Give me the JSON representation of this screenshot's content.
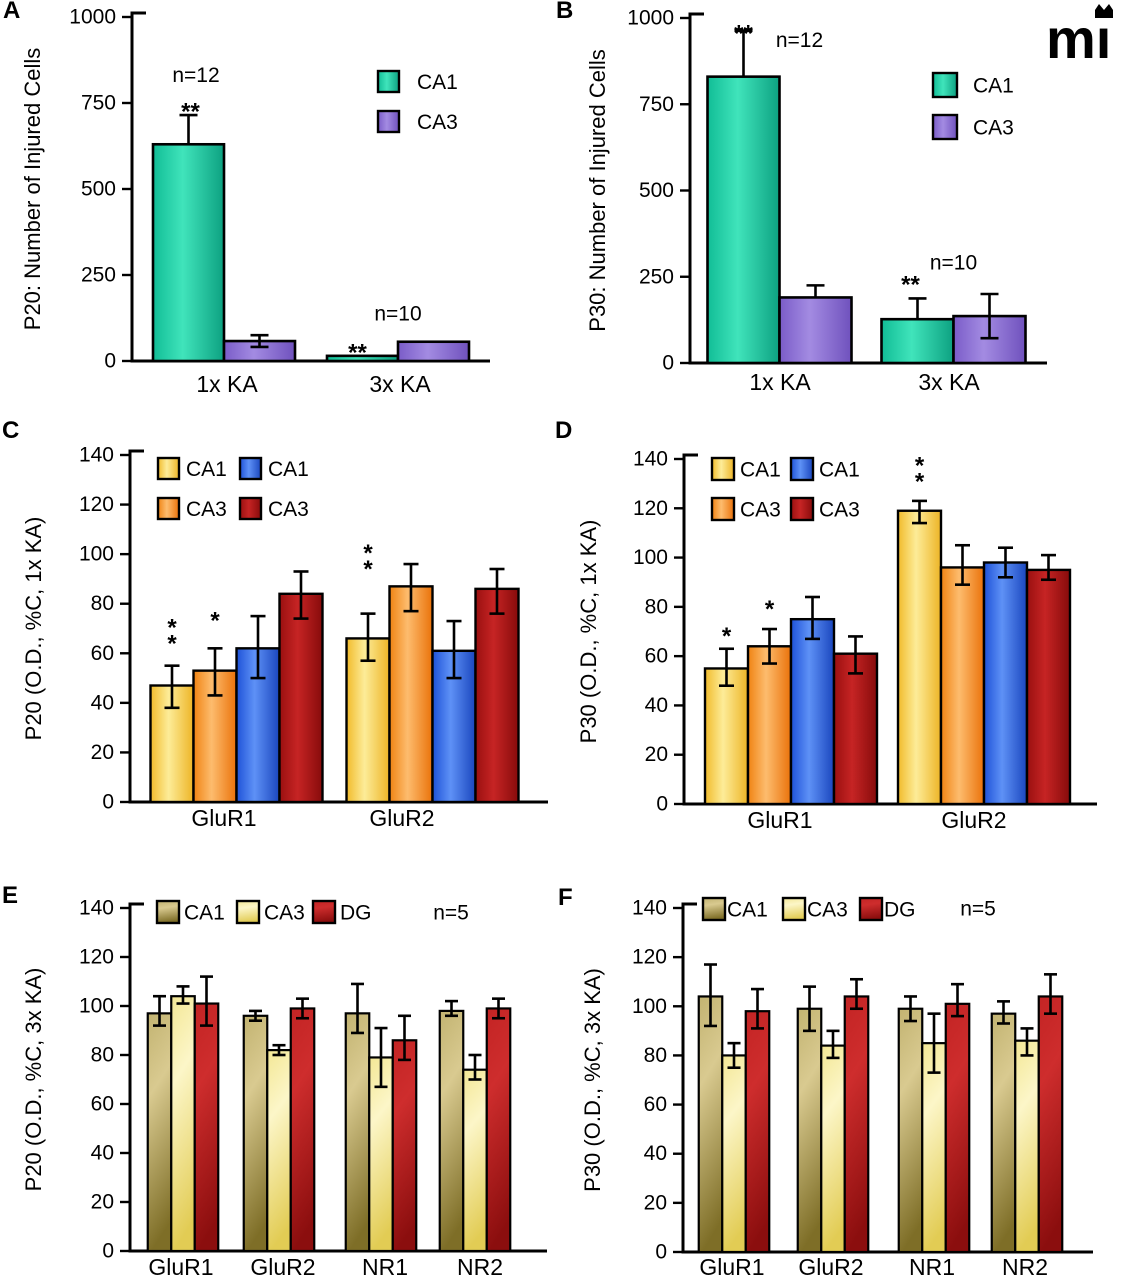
{
  "figure": {
    "logo_text": "mi"
  },
  "palette": {
    "teal": {
      "dir": "h",
      "stops": [
        "#11bd96",
        "#40e4bb",
        "#0da181"
      ]
    },
    "purple": {
      "dir": "h",
      "stops": [
        "#7a5cc8",
        "#a38be2",
        "#6f51bd"
      ]
    },
    "yellow": {
      "dir": "h",
      "stops": [
        "#f1bb2b",
        "#fdec98",
        "#edb426"
      ]
    },
    "orange": {
      "dir": "h",
      "stops": [
        "#f08312",
        "#fdbc6e",
        "#ea720a"
      ]
    },
    "blue": {
      "dir": "h",
      "stops": [
        "#1e52d8",
        "#5e91f6",
        "#1a46be"
      ]
    },
    "red": {
      "dir": "h",
      "stops": [
        "#9a1010",
        "#c62424",
        "#870b0b"
      ]
    },
    "olive": {
      "dir": "v",
      "stops": [
        "#c2b371",
        "#d9ca90",
        "#7e6e27"
      ]
    },
    "paleyellow": {
      "dir": "v",
      "stops": [
        "#f3e795",
        "#fcf6c8",
        "#e2cc54"
      ]
    },
    "dgred": {
      "dir": "v",
      "stops": [
        "#c32424",
        "#ce2d2d",
        "#8b0e0e"
      ]
    }
  },
  "chart_data": [
    {
      "panel": "A",
      "type": "bar",
      "ylabel": "P20: Number of Injured Cells",
      "ylim": [
        0,
        1000
      ],
      "yticks": [
        0,
        250,
        500,
        750,
        1000
      ],
      "categories": [
        "1x KA",
        "3x KA"
      ],
      "series": [
        {
          "name": "CA1",
          "color": "teal",
          "values": [
            630,
            15
          ],
          "err_up": [
            85,
            0
          ],
          "err_down": [
            0,
            0
          ]
        },
        {
          "name": "CA3",
          "color": "purple",
          "values": [
            58,
            56
          ],
          "err_up": [
            17,
            0
          ],
          "err_down": [
            17,
            0
          ]
        }
      ],
      "legend": {
        "items": [
          {
            "label": "CA1",
            "color": "teal"
          },
          {
            "label": "CA3",
            "color": "purple"
          }
        ]
      },
      "annotations": [
        {
          "text": "n=12",
          "g": 0,
          "dx": -28,
          "y": 830
        },
        {
          "text": "**",
          "g": 0,
          "b": 0,
          "dx": 2,
          "y": 745,
          "stars": "h"
        },
        {
          "text": "n=10",
          "g": 1,
          "dx": 0,
          "y": 137
        },
        {
          "text": "**",
          "g": 1,
          "b": 0,
          "dx": -5,
          "y": 45,
          "stars": "h"
        }
      ]
    },
    {
      "panel": "B",
      "type": "bar",
      "ylabel": "P30: Number of Injured Cells",
      "ylim": [
        0,
        1000
      ],
      "yticks": [
        0,
        250,
        500,
        750,
        1000
      ],
      "categories": [
        "1x KA",
        "3x KA"
      ],
      "series": [
        {
          "name": "CA1",
          "color": "teal",
          "values": [
            830,
            127
          ],
          "err_up": [
            133,
            60
          ],
          "err_down": [
            0,
            0
          ]
        },
        {
          "name": "CA3",
          "color": "purple",
          "values": [
            190,
            136
          ],
          "err_up": [
            35,
            64
          ],
          "err_down": [
            0,
            64
          ]
        }
      ],
      "legend": {
        "items": [
          {
            "label": "CA1",
            "color": "teal"
          },
          {
            "label": "CA3",
            "color": "purple"
          }
        ]
      },
      "annotations": [
        {
          "text": "**",
          "g": 0,
          "b": 0,
          "dx": 0,
          "y": 975,
          "stars": "h"
        },
        {
          "text": "n=12",
          "g": 0,
          "dx": 20,
          "y": 935
        },
        {
          "text": "**",
          "g": 1,
          "b": 0,
          "dx": -7,
          "y": 248,
          "stars": "h"
        },
        {
          "text": "n=10",
          "g": 1,
          "dx": 0,
          "y": 290
        }
      ]
    },
    {
      "panel": "C",
      "type": "bar",
      "ylabel": "P20 (O.D., %C, 1x KA)",
      "ylim": [
        0,
        140
      ],
      "yticks": [
        0,
        20,
        40,
        60,
        80,
        100,
        120,
        140
      ],
      "categories": [
        "GluR1",
        "GluR2"
      ],
      "series": [
        {
          "name": "CA1",
          "color": "yellow",
          "values": [
            47,
            66
          ],
          "err_up": [
            8,
            10
          ],
          "err_down": [
            9,
            9
          ]
        },
        {
          "name": "CA3",
          "color": "orange",
          "values": [
            53,
            87
          ],
          "err_up": [
            9,
            9
          ],
          "err_down": [
            10,
            10
          ]
        },
        {
          "name": "CA1",
          "color": "blue",
          "values": [
            62,
            61
          ],
          "err_up": [
            13,
            12
          ],
          "err_down": [
            12,
            11
          ]
        },
        {
          "name": "CA3",
          "color": "red",
          "values": [
            84,
            86
          ],
          "err_up": [
            9,
            8
          ],
          "err_down": [
            10,
            10
          ]
        }
      ],
      "legend": {
        "items": [
          {
            "label": "CA1",
            "color": "yellow"
          },
          {
            "label": "CA1",
            "color": "blue"
          },
          {
            "label": "CA3",
            "color": "orange"
          },
          {
            "label": "CA3",
            "color": "red"
          }
        ]
      },
      "annotations": [
        {
          "text": "**",
          "g": 0,
          "b": 0,
          "y": 70,
          "stars": "v"
        },
        {
          "text": "*",
          "g": 0,
          "b": 1,
          "y": 76,
          "stars": "h"
        },
        {
          "text": "**",
          "g": 1,
          "b": 0,
          "y": 100,
          "stars": "v"
        }
      ]
    },
    {
      "panel": "D",
      "type": "bar",
      "ylabel": "P30 (O.D., %C, 1x KA)",
      "ylim": [
        0,
        140
      ],
      "yticks": [
        0,
        20,
        40,
        60,
        80,
        100,
        120,
        140
      ],
      "categories": [
        "GluR1",
        "GluR2"
      ],
      "series": [
        {
          "name": "CA1",
          "color": "yellow",
          "values": [
            55,
            119
          ],
          "err_up": [
            8,
            4
          ],
          "err_down": [
            7,
            5
          ]
        },
        {
          "name": "CA3",
          "color": "orange",
          "values": [
            64,
            96
          ],
          "err_up": [
            7,
            9
          ],
          "err_down": [
            7,
            7
          ]
        },
        {
          "name": "CA1",
          "color": "blue",
          "values": [
            75,
            98
          ],
          "err_up": [
            9,
            6
          ],
          "err_down": [
            8,
            6
          ]
        },
        {
          "name": "CA3",
          "color": "red",
          "values": [
            61,
            95
          ],
          "err_up": [
            7,
            6
          ],
          "err_down": [
            8,
            4
          ]
        }
      ],
      "legend": {
        "items": [
          {
            "label": "CA1",
            "color": "yellow"
          },
          {
            "label": "CA1",
            "color": "blue"
          },
          {
            "label": "CA3",
            "color": "orange"
          },
          {
            "label": "CA3",
            "color": "red"
          }
        ]
      },
      "annotations": [
        {
          "text": "*",
          "g": 0,
          "b": 0,
          "y": 71,
          "stars": "h"
        },
        {
          "text": "*",
          "g": 0,
          "b": 1,
          "y": 82,
          "stars": "h"
        },
        {
          "text": "**",
          "g": 1,
          "b": 0,
          "y": 137,
          "stars": "v"
        }
      ]
    },
    {
      "panel": "E",
      "type": "bar",
      "ylabel": "P20 (O.D., %C, 3x KA)",
      "ylim": [
        0,
        140
      ],
      "yticks": [
        0,
        20,
        40,
        60,
        80,
        100,
        120,
        140
      ],
      "categories": [
        "GluR1",
        "GluR2",
        "NR1",
        "NR2"
      ],
      "series": [
        {
          "name": "CA1",
          "color": "olive",
          "values": [
            97,
            96,
            97,
            98
          ],
          "err_up": [
            7,
            2,
            12,
            4
          ],
          "err_down": [
            5,
            2,
            8,
            2
          ]
        },
        {
          "name": "CA3",
          "color": "paleyellow",
          "values": [
            104,
            82,
            79,
            74
          ],
          "err_up": [
            4,
            2,
            12,
            6
          ],
          "err_down": [
            3,
            2,
            12,
            4
          ]
        },
        {
          "name": "DG",
          "color": "dgred",
          "values": [
            101,
            99,
            86,
            99
          ],
          "err_up": [
            11,
            4,
            10,
            4
          ],
          "err_down": [
            9,
            4,
            8,
            4
          ]
        }
      ],
      "legend": {
        "items": [
          {
            "label": "CA1",
            "color": "olive"
          },
          {
            "label": "CA3",
            "color": "paleyellow"
          },
          {
            "label": "DG",
            "color": "dgred"
          }
        ],
        "note": "n=5"
      },
      "annotations": []
    },
    {
      "panel": "F",
      "type": "bar",
      "ylabel": "P30 (O.D., %C, 3x KA)",
      "ylim": [
        0,
        140
      ],
      "yticks": [
        0,
        20,
        40,
        60,
        80,
        100,
        120,
        140
      ],
      "categories": [
        "GluR1",
        "GluR2",
        "NR1",
        "NR2"
      ],
      "series": [
        {
          "name": "CA1",
          "color": "olive",
          "values": [
            104,
            99,
            99,
            97
          ],
          "err_up": [
            13,
            9,
            5,
            5
          ],
          "err_down": [
            12,
            9,
            5,
            4
          ]
        },
        {
          "name": "CA3",
          "color": "paleyellow",
          "values": [
            80,
            84,
            85,
            86
          ],
          "err_up": [
            5,
            6,
            12,
            5
          ],
          "err_down": [
            5,
            5,
            12,
            6
          ]
        },
        {
          "name": "DG",
          "color": "dgred",
          "values": [
            98,
            104,
            101,
            104
          ],
          "err_up": [
            9,
            7,
            8,
            9
          ],
          "err_down": [
            7,
            5,
            5,
            7
          ]
        }
      ],
      "legend": {
        "items": [
          {
            "label": "CA1",
            "color": "olive"
          },
          {
            "label": "CA3",
            "color": "paleyellow"
          },
          {
            "label": "DG",
            "color": "dgred"
          }
        ],
        "note": "n=5"
      },
      "annotations": []
    }
  ]
}
